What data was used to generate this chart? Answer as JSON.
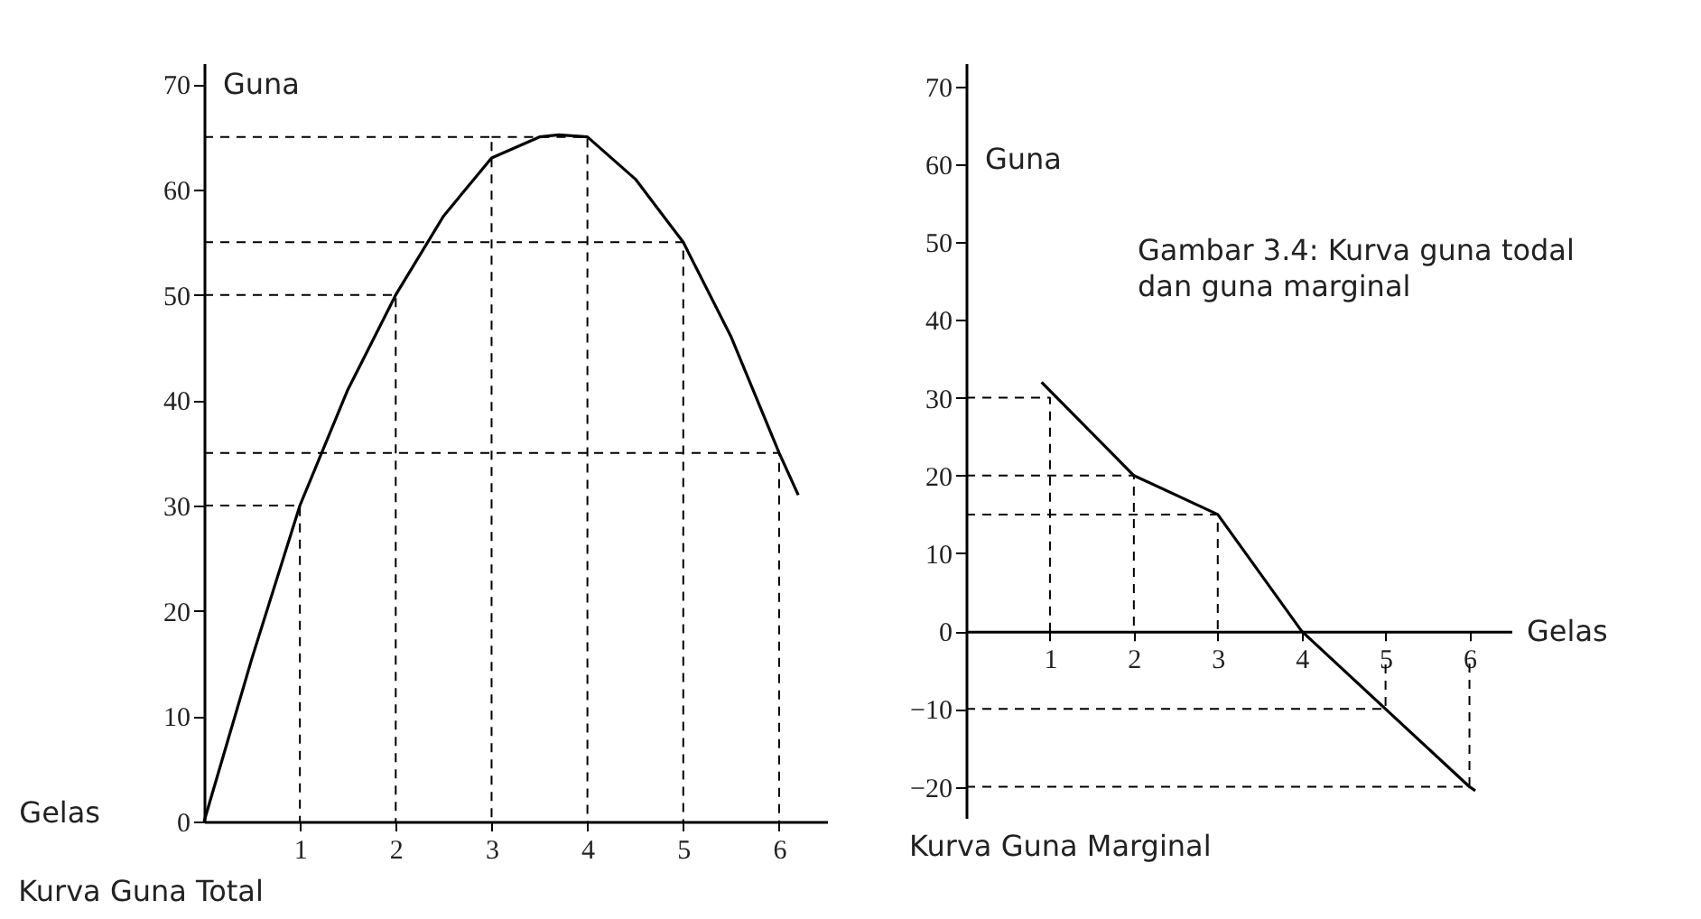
{
  "chart_data": [
    {
      "type": "line",
      "title": "Kurva Guna Total",
      "xlabel": "Gelas",
      "ylabel": "Guna",
      "xlim": [
        0,
        6.5
      ],
      "xticks": [
        1,
        2,
        3,
        4,
        5,
        6
      ],
      "ylim": [
        0,
        72
      ],
      "yticks": [
        0,
        10,
        20,
        30,
        40,
        50,
        60,
        70
      ],
      "grid": false,
      "series": [
        {
          "color": "#000000",
          "line_style": "solid",
          "x": [
            0,
            0.5,
            1,
            1.5,
            2,
            2.5,
            3,
            3.5,
            3.7,
            4,
            4.5,
            5,
            5.5,
            6,
            6.2
          ],
          "values": [
            0,
            15.5,
            30,
            41,
            50,
            57.5,
            63,
            65,
            65.2,
            65,
            61,
            55,
            46,
            35,
            31
          ]
        },
        {
          "color": "#000000",
          "line_style": "dashed",
          "x": [
            0,
            1,
            1
          ],
          "values": [
            30,
            30,
            0
          ]
        },
        {
          "color": "#000000",
          "line_style": "dashed",
          "x": [
            0,
            2,
            2
          ],
          "values": [
            50,
            50,
            0
          ]
        },
        {
          "color": "#000000",
          "line_style": "dashed",
          "x": [
            0,
            3,
            3
          ],
          "values": [
            65,
            65,
            0
          ]
        },
        {
          "color": "#000000",
          "line_style": "dashed",
          "x": [
            3,
            4,
            4
          ],
          "values": [
            65,
            65,
            0
          ]
        },
        {
          "color": "#000000",
          "line_style": "dashed",
          "x": [
            0,
            5,
            5
          ],
          "values": [
            55,
            55,
            0
          ]
        },
        {
          "color": "#000000",
          "line_style": "dashed",
          "x": [
            0,
            6,
            6
          ],
          "values": [
            35,
            35,
            0
          ]
        }
      ]
    },
    {
      "type": "line",
      "title": "Kurva Guna Marginal",
      "xlabel": "Gelas",
      "ylabel": "Guna",
      "xlim": [
        0,
        6.5
      ],
      "xticks": [
        1,
        2,
        3,
        4,
        5,
        6
      ],
      "ylim": [
        -24,
        73
      ],
      "yticks": [
        -20,
        -10,
        0,
        10,
        20,
        30,
        40,
        50,
        60,
        70
      ],
      "grid": false,
      "annotations": [
        "Gambar 3.4: Kurva guna todal dan guna marginal"
      ],
      "series": [
        {
          "color": "#000000",
          "line_style": "solid",
          "x": [
            0.9,
            2,
            3,
            4,
            5,
            6,
            6.07
          ],
          "values": [
            32,
            20,
            15,
            0,
            -10,
            -20,
            -20.5
          ]
        },
        {
          "color": "#000000",
          "line_style": "dashed",
          "x": [
            0,
            1,
            1
          ],
          "values": [
            30,
            30,
            0
          ]
        },
        {
          "color": "#000000",
          "line_style": "dashed",
          "x": [
            0,
            2,
            2
          ],
          "values": [
            20,
            20,
            0
          ]
        },
        {
          "color": "#000000",
          "line_style": "dashed",
          "x": [
            0,
            3,
            3
          ],
          "values": [
            15,
            15,
            0
          ]
        },
        {
          "color": "#000000",
          "line_style": "dashed",
          "x": [
            0,
            5,
            5
          ],
          "values": [
            -10,
            -10,
            -4
          ]
        },
        {
          "color": "#000000",
          "line_style": "dashed",
          "x": [
            0,
            6,
            6
          ],
          "values": [
            -20,
            -20,
            -4
          ]
        }
      ]
    }
  ]
}
